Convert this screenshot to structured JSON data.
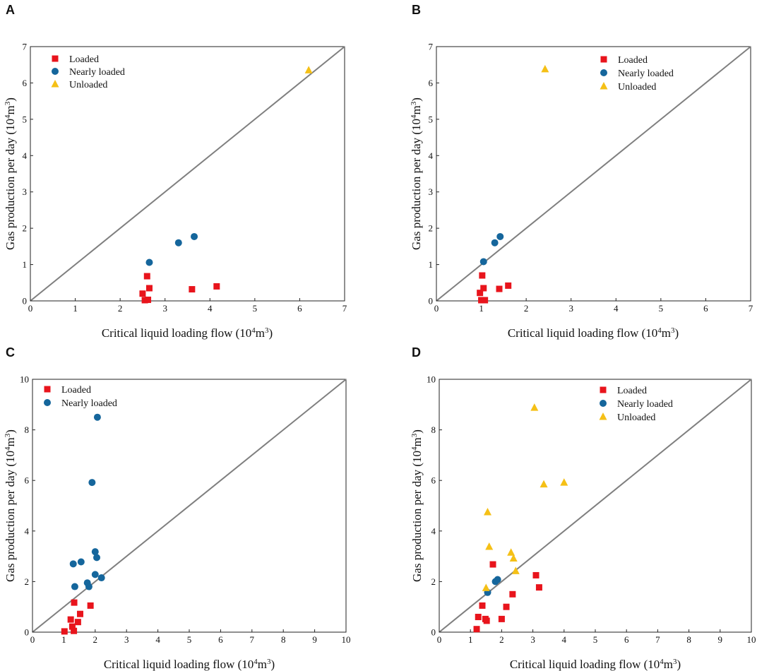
{
  "colors": {
    "loaded": "#e8141c",
    "nearly_loaded": "#15669c",
    "unloaded": "#f5c016",
    "diagonal": "#7f7f7f",
    "axis": "#222222"
  },
  "chart_data": [
    {
      "panel": "A",
      "type": "scatter",
      "xlabel": "Critical liquid loading flow (10",
      "ylabel": "Gas production per day (10",
      "unit_exp": "4",
      "unit_base": "m",
      "unit_pow": "3",
      "unit_close": ")",
      "xlim": [
        0,
        7
      ],
      "ylim": [
        0,
        7
      ],
      "xticks": [
        "0",
        "1",
        "2",
        "3",
        "4",
        "5",
        "6",
        "7"
      ],
      "yticks": [
        "0",
        "1",
        "2",
        "3",
        "4",
        "5",
        "6",
        "7"
      ],
      "diagonal": true,
      "legend_position": "top-left",
      "series": [
        {
          "name": "Loaded",
          "marker": "square",
          "color_key": "loaded",
          "points": [
            [
              2.5,
              0.2
            ],
            [
              2.55,
              0.02
            ],
            [
              2.6,
              0.68
            ],
            [
              2.62,
              0.03
            ],
            [
              2.65,
              0.35
            ],
            [
              3.6,
              0.32
            ],
            [
              4.15,
              0.4
            ]
          ]
        },
        {
          "name": "Nearly loaded",
          "marker": "circle",
          "color_key": "nearly_loaded",
          "points": [
            [
              2.65,
              1.06
            ],
            [
              3.3,
              1.6
            ],
            [
              3.65,
              1.77
            ]
          ]
        },
        {
          "name": "Unloaded",
          "marker": "triangle",
          "color_key": "unloaded",
          "points": [
            [
              6.2,
              6.35
            ]
          ]
        }
      ]
    },
    {
      "panel": "B",
      "type": "scatter",
      "xlabel": "Critical liquid loading flow (10",
      "ylabel": "Gas production per day (10",
      "unit_exp": "4",
      "unit_base": "m",
      "unit_pow": "3",
      "unit_close": ")",
      "xlim": [
        0,
        7
      ],
      "ylim": [
        0,
        7
      ],
      "xticks": [
        "0",
        "1",
        "2",
        "3",
        "4",
        "5",
        "6",
        "7"
      ],
      "yticks": [
        "0",
        "1",
        "2",
        "3",
        "4",
        "5",
        "6",
        "7"
      ],
      "diagonal": true,
      "legend_position": "top-right",
      "series": [
        {
          "name": "Loaded",
          "marker": "square",
          "color_key": "loaded",
          "points": [
            [
              0.97,
              0.22
            ],
            [
              1.0,
              0.02
            ],
            [
              1.02,
              0.7
            ],
            [
              1.05,
              0.35
            ],
            [
              1.08,
              0.02
            ],
            [
              1.4,
              0.33
            ],
            [
              1.6,
              0.42
            ]
          ]
        },
        {
          "name": "Nearly loaded",
          "marker": "circle",
          "color_key": "nearly_loaded",
          "points": [
            [
              1.05,
              1.08
            ],
            [
              1.3,
              1.6
            ],
            [
              1.42,
              1.77
            ]
          ]
        },
        {
          "name": "Unloaded",
          "marker": "triangle",
          "color_key": "unloaded",
          "points": [
            [
              2.42,
              6.38
            ]
          ]
        }
      ]
    },
    {
      "panel": "C",
      "type": "scatter",
      "xlabel": "Critical liquid loading flow (10",
      "ylabel": "Gas production per day (10",
      "unit_exp": "4",
      "unit_base": "m",
      "unit_pow": "3",
      "unit_close": ")",
      "xlim": [
        0,
        10
      ],
      "ylim": [
        0,
        10
      ],
      "xticks": [
        "0",
        "1",
        "2",
        "3",
        "4",
        "5",
        "6",
        "7",
        "8",
        "9",
        "10"
      ],
      "yticks": [
        "0",
        "2",
        "4",
        "6",
        "8",
        "10"
      ],
      "diagonal": true,
      "legend_position": "top-left",
      "series": [
        {
          "name": "Loaded",
          "marker": "square",
          "color_key": "loaded",
          "points": [
            [
              1.02,
              0.03
            ],
            [
              1.22,
              0.5
            ],
            [
              1.27,
              0.22
            ],
            [
              1.32,
              0.05
            ],
            [
              1.33,
              1.17
            ],
            [
              1.45,
              0.4
            ],
            [
              1.52,
              0.72
            ],
            [
              1.85,
              1.05
            ]
          ]
        },
        {
          "name": "Nearly loaded",
          "marker": "circle",
          "color_key": "nearly_loaded",
          "points": [
            [
              1.3,
              2.7
            ],
            [
              1.35,
              1.8
            ],
            [
              1.55,
              2.78
            ],
            [
              1.75,
              1.95
            ],
            [
              1.8,
              1.8
            ],
            [
              1.9,
              5.92
            ],
            [
              2.0,
              3.18
            ],
            [
              2.0,
              2.28
            ],
            [
              2.05,
              2.95
            ],
            [
              2.07,
              8.5
            ],
            [
              2.2,
              2.15
            ]
          ]
        }
      ]
    },
    {
      "panel": "D",
      "type": "scatter",
      "xlabel": "Critical liquid loading flow (10",
      "ylabel": "Gas production per day (10",
      "unit_exp": "4",
      "unit_base": "m",
      "unit_pow": "3",
      "unit_close": ")",
      "xlim": [
        0,
        10
      ],
      "ylim": [
        0,
        10
      ],
      "xticks": [
        "0",
        "1",
        "2",
        "3",
        "4",
        "5",
        "6",
        "7",
        "8",
        "9",
        "10"
      ],
      "yticks": [
        "0",
        "2",
        "4",
        "6",
        "8",
        "10"
      ],
      "diagonal": true,
      "legend_position": "top-center",
      "series": [
        {
          "name": "Loaded",
          "marker": "square",
          "color_key": "loaded",
          "points": [
            [
              1.2,
              0.12
            ],
            [
              1.25,
              0.6
            ],
            [
              1.38,
              1.05
            ],
            [
              1.48,
              0.52
            ],
            [
              1.52,
              0.45
            ],
            [
              1.72,
              2.68
            ],
            [
              2.0,
              0.52
            ],
            [
              2.15,
              1.0
            ],
            [
              2.35,
              1.5
            ],
            [
              3.1,
              2.25
            ],
            [
              3.2,
              1.77
            ]
          ]
        },
        {
          "name": "Nearly loaded",
          "marker": "circle",
          "color_key": "nearly_loaded",
          "points": [
            [
              1.55,
              1.57
            ],
            [
              1.8,
              2.0
            ],
            [
              1.87,
              2.08
            ]
          ]
        },
        {
          "name": "Unloaded",
          "marker": "triangle",
          "color_key": "unloaded",
          "points": [
            [
              1.5,
              1.75
            ],
            [
              1.55,
              4.75
            ],
            [
              1.6,
              3.38
            ],
            [
              2.3,
              3.15
            ],
            [
              2.38,
              2.92
            ],
            [
              2.45,
              2.42
            ],
            [
              3.05,
              8.88
            ],
            [
              3.35,
              5.85
            ],
            [
              4.0,
              5.92
            ]
          ]
        }
      ]
    }
  ]
}
